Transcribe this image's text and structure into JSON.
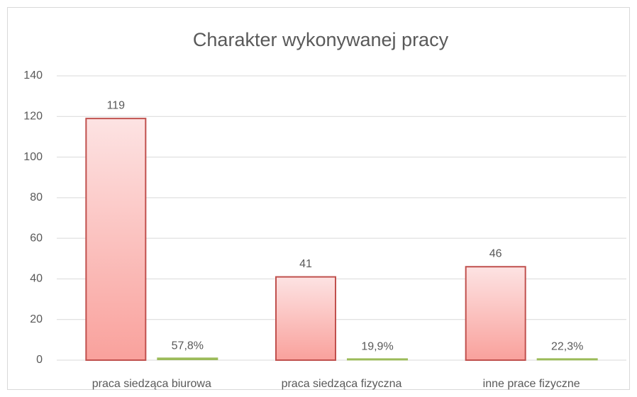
{
  "chart_data": {
    "type": "bar",
    "title": "Charakter wykonywanej pracy",
    "categories": [
      "praca siedząca biurowa",
      "praca siedząca fizyczna",
      "inne prace fizyczne"
    ],
    "series": [
      {
        "color": "#c0504d",
        "values": [
          119,
          41,
          46
        ]
      },
      {
        "color": "#9bbb59",
        "values": [
          0.578,
          0.199,
          0.223
        ],
        "value_labels": [
          "57,8%",
          "19,9%",
          "22,3%"
        ]
      }
    ],
    "ylim": [
      0,
      140
    ],
    "yticks": [
      0,
      20,
      40,
      60,
      80,
      100,
      120,
      140
    ],
    "grid": true
  }
}
